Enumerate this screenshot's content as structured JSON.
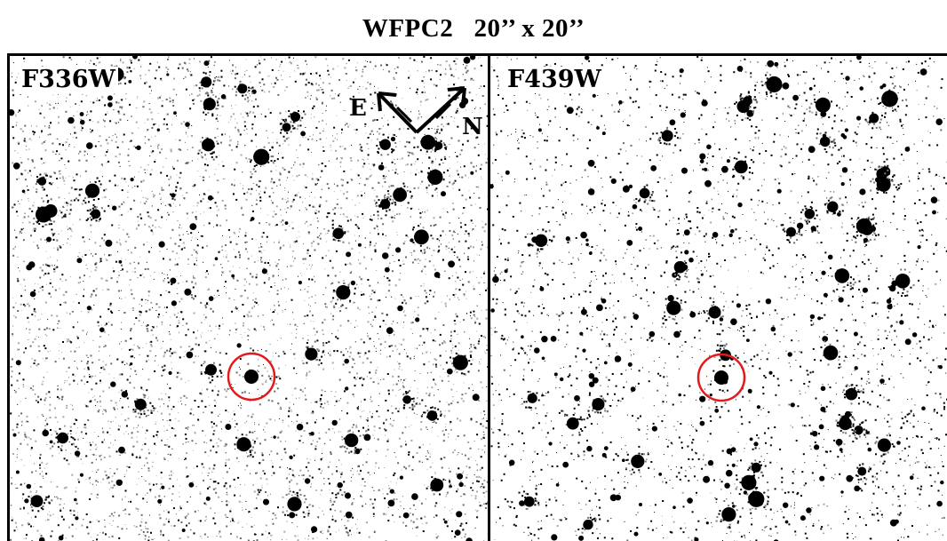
{
  "title": "WFPC2   20’’ x 20’’",
  "panels": [
    {
      "filter": "F336W",
      "has_compass": true
    },
    {
      "filter": "F439W",
      "has_compass": false
    }
  ],
  "compass": {
    "east_label": "E",
    "north_label": "N"
  },
  "colors": {
    "background": "#ffffff",
    "stars": "#000000",
    "target_circle": "#e31a1c",
    "frame": "#000000"
  }
}
